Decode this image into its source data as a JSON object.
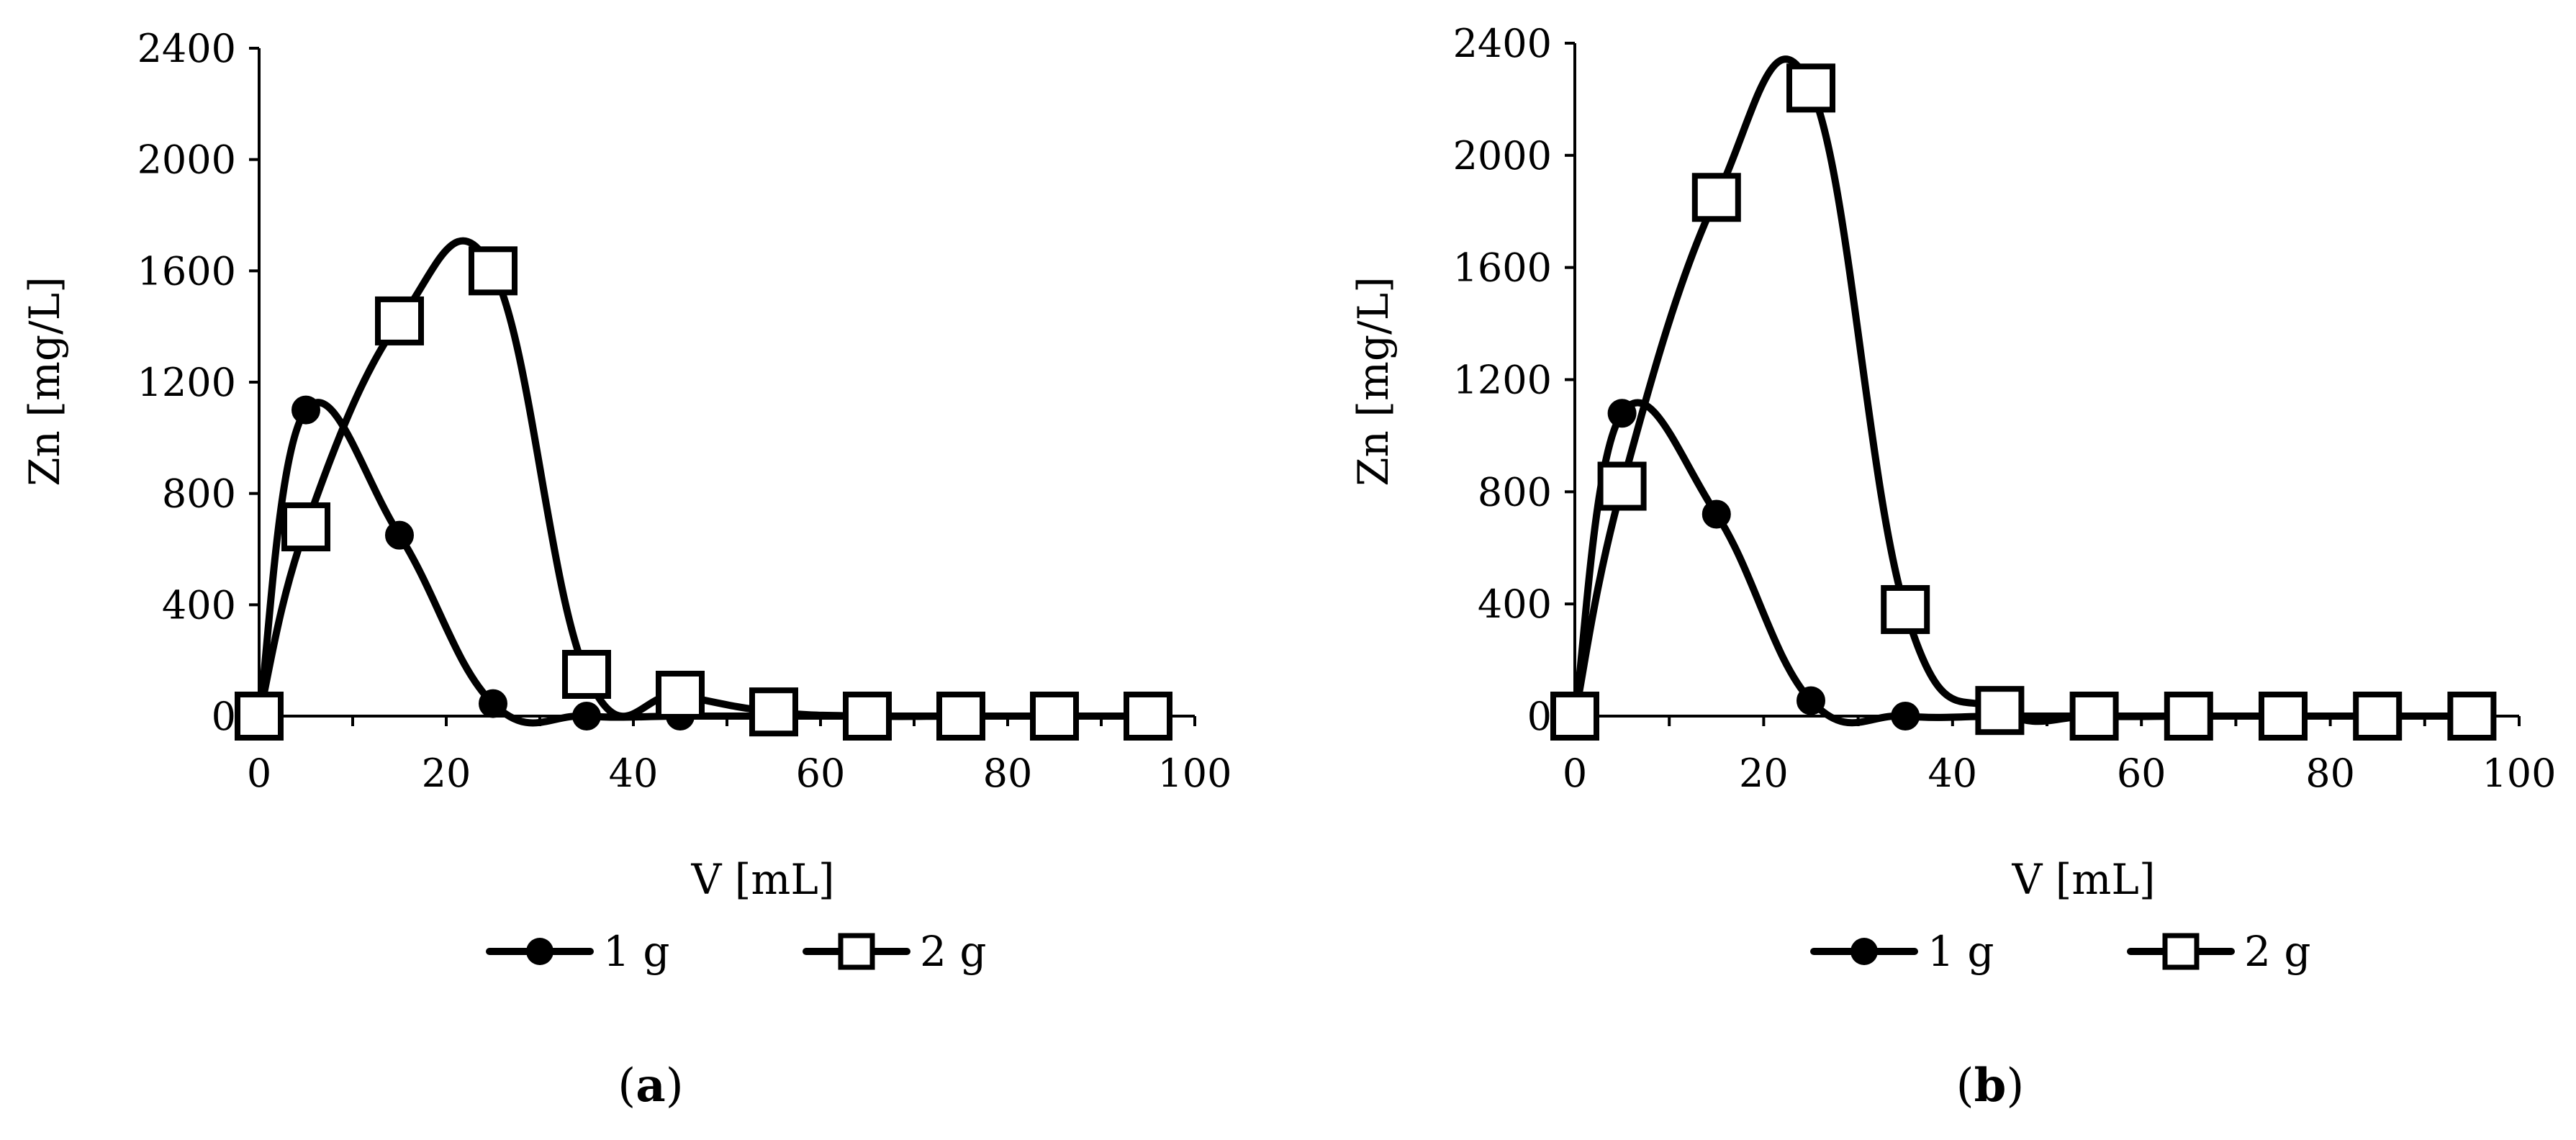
{
  "chart_data": [
    {
      "panel": "(a)",
      "panel_letter": "a",
      "type": "scatter",
      "xlabel": "V [mL]",
      "ylabel": "Zn [mg/L]",
      "xlim": [
        0,
        100
      ],
      "ylim": [
        0,
        2400
      ],
      "xticks": [
        0,
        20,
        40,
        60,
        80,
        100
      ],
      "yticks": [
        0,
        400,
        800,
        1200,
        1600,
        2000,
        2400
      ],
      "grid": false,
      "legend_position": "bottom",
      "series": [
        {
          "name": "1 g",
          "marker": "filled-circle",
          "x": [
            0,
            5,
            15,
            25,
            35,
            45,
            55,
            65,
            75,
            85
          ],
          "y": [
            0,
            1100,
            650,
            45,
            0,
            0,
            0,
            0,
            0,
            0
          ]
        },
        {
          "name": "2 g",
          "marker": "open-square",
          "x": [
            0,
            5,
            15,
            25,
            35,
            45,
            55,
            65,
            75,
            85,
            95
          ],
          "y": [
            0,
            680,
            1420,
            1600,
            150,
            75,
            15,
            0,
            0,
            0,
            0
          ]
        }
      ]
    },
    {
      "panel": "(b)",
      "panel_letter": "b",
      "type": "scatter",
      "xlabel": "V [mL]",
      "ylabel": "Zn [mg/L]",
      "xlim": [
        0,
        100
      ],
      "ylim": [
        0,
        2400
      ],
      "xticks": [
        0,
        20,
        40,
        60,
        80,
        100
      ],
      "yticks": [
        0,
        400,
        800,
        1200,
        1600,
        2000,
        2400
      ],
      "grid": false,
      "legend_position": "bottom",
      "series": [
        {
          "name": "1 g",
          "marker": "filled-circle",
          "x": [
            0,
            5,
            15,
            25,
            35,
            45,
            55,
            65,
            75,
            85,
            95
          ],
          "y": [
            0,
            1080,
            720,
            55,
            0,
            0,
            0,
            0,
            0,
            0,
            0
          ]
        },
        {
          "name": "2 g",
          "marker": "open-square",
          "x": [
            0,
            5,
            15,
            25,
            35,
            45,
            55,
            65,
            75,
            85,
            95
          ],
          "y": [
            0,
            820,
            1850,
            2240,
            380,
            20,
            0,
            0,
            0,
            0,
            0
          ]
        }
      ]
    }
  ]
}
